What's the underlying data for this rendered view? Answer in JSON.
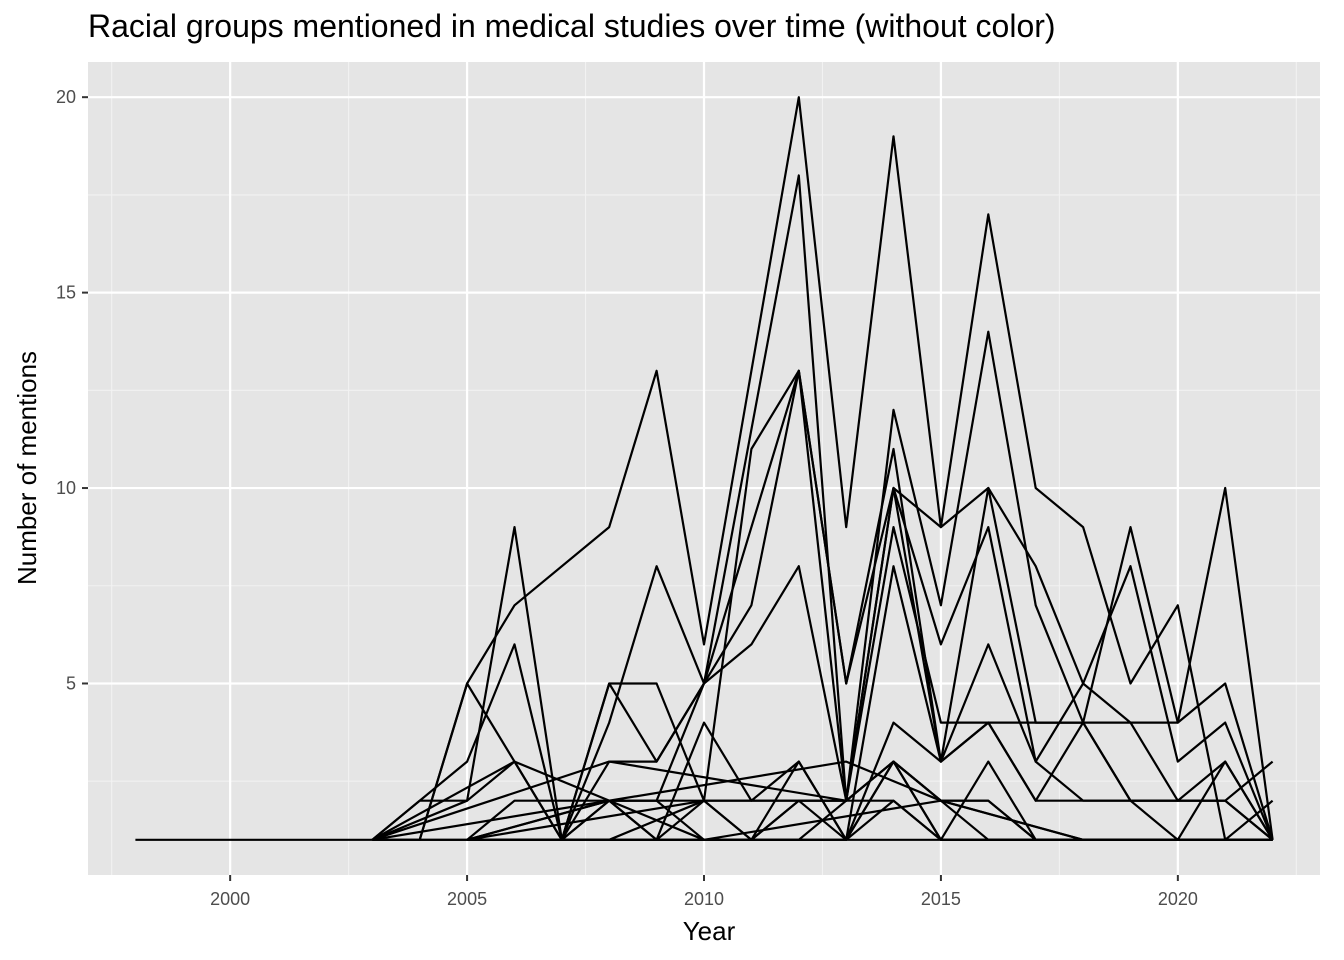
{
  "chart_data": {
    "type": "line",
    "title": "Racial groups mentioned in medical studies over time (without color)",
    "xlabel": "Year",
    "ylabel": "Number of mentions",
    "xlim": [
      1997,
      2023
    ],
    "ylim": [
      0.1,
      20.9
    ],
    "x_ticks": [
      2000,
      2005,
      2010,
      2015,
      2020
    ],
    "x_tick_labels": [
      "2000",
      "2005",
      "2010",
      "2015",
      "2020"
    ],
    "y_ticks": [
      5,
      10,
      15,
      20
    ],
    "y_tick_labels": [
      "5",
      "10",
      "15",
      "20"
    ],
    "grid": true,
    "background": "#e5e5e5",
    "line_color": "#000000",
    "series": [
      {
        "x": [
          1998,
          2003,
          2004,
          2005,
          2006,
          2008,
          2009,
          2010,
          2012,
          2013,
          2014,
          2015,
          2016,
          2017,
          2018,
          2019,
          2020,
          2021,
          2022
        ],
        "y": [
          1,
          1,
          1,
          5,
          7,
          9,
          13,
          6,
          20,
          9,
          19,
          9,
          10,
          8,
          5,
          4,
          4,
          10,
          1
        ]
      },
      {
        "x": [
          2003,
          2004,
          2005,
          2006,
          2007,
          2008,
          2009,
          2010,
          2011,
          2012,
          2013,
          2014,
          2015,
          2016,
          2017,
          2018,
          2019,
          2020,
          2021,
          2022
        ],
        "y": [
          1,
          2,
          2,
          9,
          1,
          5,
          5,
          2,
          11,
          13,
          2,
          10,
          9,
          17,
          10,
          9,
          5,
          7,
          1,
          1
        ]
      },
      {
        "x": [
          2003,
          2005,
          2006,
          2007,
          2008,
          2009,
          2010,
          2012,
          2013,
          2014,
          2015,
          2016,
          2017,
          2018,
          2019,
          2020,
          2021,
          2022
        ],
        "y": [
          1,
          3,
          6,
          1,
          4,
          8,
          5,
          18,
          2,
          12,
          7,
          14,
          7,
          4,
          9,
          4,
          5,
          1
        ]
      },
      {
        "x": [
          2004,
          2005,
          2006,
          2007,
          2008,
          2009,
          2011,
          2012,
          2013,
          2014,
          2015,
          2016,
          2017,
          2018,
          2019,
          2020,
          2021,
          2022
        ],
        "y": [
          1,
          5,
          3,
          1,
          5,
          3,
          7,
          13,
          5,
          11,
          3,
          10,
          4,
          4,
          4,
          2,
          2,
          1
        ]
      },
      {
        "x": [
          2003,
          2005,
          2006,
          2007,
          2008,
          2009,
          2010,
          2012,
          2013,
          2014,
          2015,
          2016,
          2017,
          2018,
          2019,
          2020,
          2021,
          2022
        ],
        "y": [
          1,
          2,
          3,
          1,
          3,
          3,
          5,
          13,
          5,
          10,
          6,
          9,
          3,
          5,
          8,
          3,
          4,
          1
        ]
      },
      {
        "x": [
          2003,
          2005,
          2006,
          2007,
          2008,
          2009,
          2010,
          2011,
          2012,
          2013,
          2014,
          2015,
          2016,
          2017,
          2018,
          2019,
          2020,
          2021,
          2022
        ],
        "y": [
          1,
          1,
          1,
          1,
          2,
          2,
          5,
          6,
          8,
          2,
          9,
          4,
          4,
          4,
          4,
          2,
          2,
          3,
          1
        ]
      },
      {
        "x": [
          2005,
          2006,
          2007,
          2008,
          2009,
          2010,
          2012,
          2013,
          2014,
          2015,
          2016,
          2017,
          2018,
          2019,
          2020,
          2021,
          2022
        ],
        "y": [
          1,
          2,
          2,
          2,
          2,
          2,
          2,
          2,
          10,
          3,
          6,
          3,
          2,
          2,
          2,
          2,
          3
        ]
      },
      {
        "x": [
          2005,
          2007,
          2008,
          2009,
          2010,
          2011,
          2012,
          2013,
          2014,
          2015,
          2016,
          2017,
          2018,
          2019,
          2020,
          2021,
          2022
        ],
        "y": [
          1,
          1,
          2,
          1,
          4,
          2,
          3,
          1,
          8,
          3,
          4,
          2,
          2,
          2,
          2,
          2,
          1
        ]
      },
      {
        "x": [
          2005,
          2008,
          2009,
          2010,
          2011,
          2012,
          2013,
          2014,
          2015,
          2016,
          2017,
          2018,
          2019,
          2020,
          2021,
          2022
        ],
        "y": [
          1,
          2,
          1,
          2,
          1,
          3,
          1,
          4,
          3,
          4,
          2,
          4,
          2,
          1,
          1,
          1
        ]
      },
      {
        "x": [
          2005,
          2008,
          2009,
          2010,
          2011,
          2012,
          2013,
          2014,
          2015,
          2016,
          2017,
          2018,
          2019,
          2020,
          2021,
          2022
        ],
        "y": [
          1,
          2,
          2,
          1,
          1,
          2,
          1,
          3,
          2,
          2,
          1,
          1,
          1,
          1,
          3,
          1
        ]
      },
      {
        "x": [
          2005,
          2008,
          2010,
          2011,
          2012,
          2013,
          2014,
          2015,
          2016,
          2017,
          2018,
          2019,
          2020,
          2021,
          2022
        ],
        "y": [
          1,
          1,
          2,
          1,
          2,
          2,
          3,
          1,
          3,
          1,
          1,
          1,
          1,
          1,
          1
        ]
      },
      {
        "x": [
          2005,
          2009,
          2010,
          2011,
          2012,
          2013,
          2014,
          2015,
          2016,
          2017,
          2018,
          2019,
          2020,
          2021,
          2022
        ],
        "y": [
          1,
          1,
          1,
          1,
          1,
          1,
          3,
          2,
          2,
          1,
          1,
          1,
          1,
          1,
          2
        ]
      },
      {
        "x": [
          2005,
          2010,
          2011,
          2012,
          2013,
          2014,
          2015,
          2016,
          2017,
          2018,
          2019,
          2020,
          2021,
          2022
        ],
        "y": [
          1,
          1,
          1,
          1,
          1,
          2,
          1,
          1,
          1,
          1,
          1,
          1,
          1,
          1
        ]
      },
      {
        "x": [
          2005,
          2010,
          2013,
          2014,
          2015,
          2016,
          2017,
          2018,
          2019,
          2020,
          2021,
          2022
        ],
        "y": [
          1,
          2,
          2,
          3,
          2,
          1,
          1,
          1,
          1,
          1,
          1,
          1
        ]
      },
      {
        "x": [
          2005,
          2009,
          2012,
          2013,
          2014,
          2015,
          2016,
          2017,
          2018,
          2019,
          2020,
          2021,
          2022
        ],
        "y": [
          1,
          1,
          1,
          2,
          2,
          1,
          1,
          1,
          1,
          1,
          1,
          1,
          1
        ]
      },
      {
        "x": [
          2003,
          2008,
          2013,
          2014,
          2015,
          2016,
          2017,
          2018,
          2019,
          2020,
          2021,
          2022
        ],
        "y": [
          1,
          3,
          2,
          3,
          1,
          1,
          1,
          1,
          1,
          1,
          1,
          1
        ]
      },
      {
        "x": [
          2003,
          2006,
          2010,
          2015,
          2018,
          2022
        ],
        "y": [
          1,
          3,
          1,
          2,
          1,
          1
        ]
      },
      {
        "x": [
          2003,
          2013,
          2015,
          2018,
          2022
        ],
        "y": [
          1,
          3,
          2,
          1,
          1
        ]
      },
      {
        "x": [
          2003,
          2015,
          2022
        ],
        "y": [
          1,
          1,
          1
        ]
      }
    ]
  }
}
